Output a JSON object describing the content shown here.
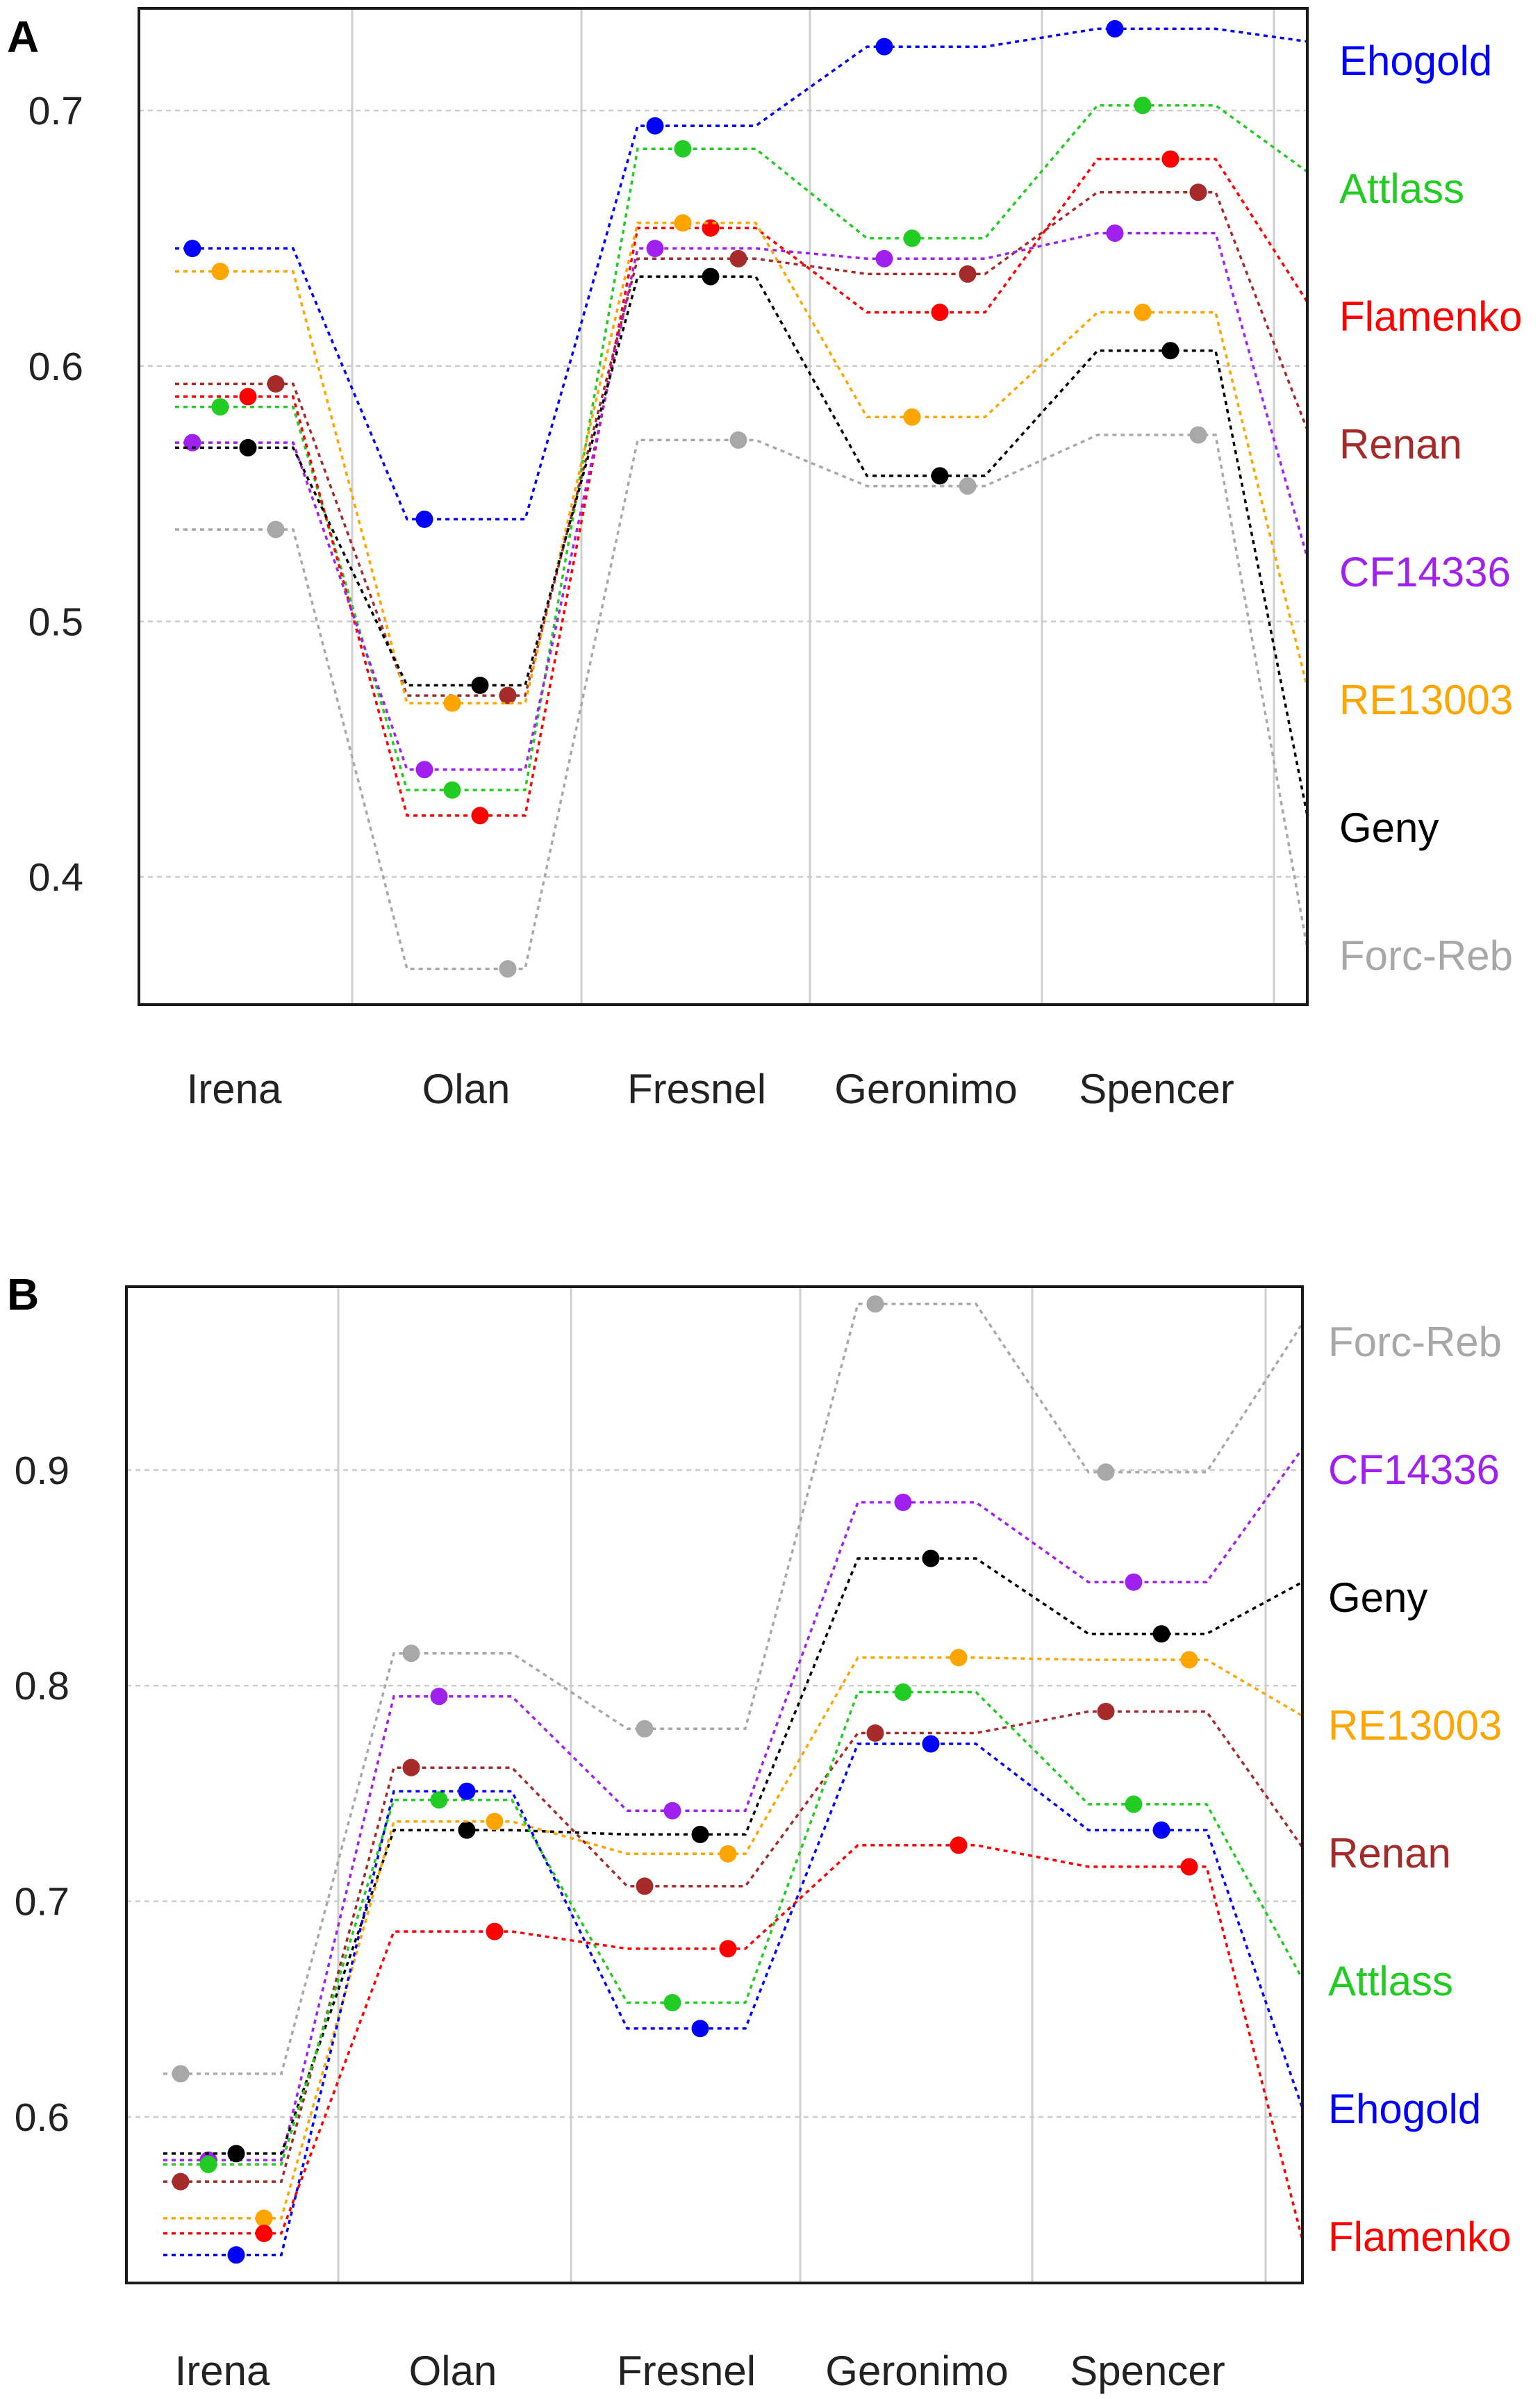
{
  "chart_data": [
    {
      "panel_label": "A",
      "type": "line",
      "categories": [
        "Irena",
        "Olan",
        "Fresnel",
        "Geronimo",
        "Spencer"
      ],
      "ylim": [
        0.35,
        0.74
      ],
      "yticks": [
        {
          "value": 0.4,
          "label": "0.4"
        },
        {
          "value": 0.5,
          "label": "0.5"
        },
        {
          "value": 0.6,
          "label": "0.6"
        },
        {
          "value": 0.7,
          "label": "0.7"
        }
      ],
      "grid": true,
      "line_style": "dotted",
      "end_value_note": "each series extends to the right border, ending at the right-border value",
      "series": [
        {
          "name": "Ehogold",
          "color": "#0000ff",
          "values": [
            0.646,
            0.54,
            0.694,
            0.725,
            0.732
          ],
          "end": 0.727
        },
        {
          "name": "Attlass",
          "color": "#22cc22",
          "values": [
            0.584,
            0.434,
            0.685,
            0.65,
            0.702
          ],
          "end": 0.676
        },
        {
          "name": "Flamenko",
          "color": "#ff0000",
          "values": [
            0.588,
            0.424,
            0.654,
            0.621,
            0.681
          ],
          "end": 0.625
        },
        {
          "name": "Renan",
          "color": "#a52a2a",
          "values": [
            0.593,
            0.471,
            0.642,
            0.636,
            0.668
          ],
          "end": 0.575
        },
        {
          "name": "CF14336",
          "color": "#a020f0",
          "values": [
            0.57,
            0.442,
            0.646,
            0.642,
            0.652
          ],
          "end": 0.525
        },
        {
          "name": "RE13003",
          "color": "#ffa500",
          "values": [
            0.637,
            0.468,
            0.656,
            0.58,
            0.621
          ],
          "end": 0.474
        },
        {
          "name": "Geny",
          "color": "#000000",
          "values": [
            0.568,
            0.475,
            0.635,
            0.557,
            0.606
          ],
          "end": 0.424
        },
        {
          "name": "Forc-Reb",
          "color": "#a8a8a8",
          "values": [
            0.536,
            0.364,
            0.571,
            0.553,
            0.573
          ],
          "end": 0.372
        }
      ]
    },
    {
      "panel_label": "B",
      "type": "line",
      "categories": [
        "Irena",
        "Olan",
        "Fresnel",
        "Geronimo",
        "Spencer"
      ],
      "ylim": [
        0.523,
        0.985
      ],
      "yticks": [
        {
          "value": 0.6,
          "label": "0.6"
        },
        {
          "value": 0.7,
          "label": "0.7"
        },
        {
          "value": 0.8,
          "label": "0.8"
        },
        {
          "value": 0.9,
          "label": "0.9"
        }
      ],
      "grid": true,
      "line_style": "dotted",
      "end_value_note": "each series extends to the right border, ending at the right-border value",
      "series": [
        {
          "name": "Forc-Reb",
          "color": "#a8a8a8",
          "values": [
            0.62,
            0.815,
            0.78,
            0.977,
            0.899
          ],
          "end": 0.968
        },
        {
          "name": "CF14336",
          "color": "#a020f0",
          "values": [
            0.58,
            0.795,
            0.742,
            0.885,
            0.848
          ],
          "end": 0.91
        },
        {
          "name": "Geny",
          "color": "#000000",
          "values": [
            0.583,
            0.733,
            0.731,
            0.859,
            0.824
          ],
          "end": 0.848
        },
        {
          "name": "RE13003",
          "color": "#ffa500",
          "values": [
            0.553,
            0.737,
            0.722,
            0.813,
            0.812
          ],
          "end": 0.786
        },
        {
          "name": "Renan",
          "color": "#a52a2a",
          "values": [
            0.57,
            0.762,
            0.707,
            0.778,
            0.788
          ],
          "end": 0.725
        },
        {
          "name": "Attlass",
          "color": "#22cc22",
          "values": [
            0.578,
            0.747,
            0.653,
            0.797,
            0.745
          ],
          "end": 0.664
        },
        {
          "name": "Ehogold",
          "color": "#0000ff",
          "values": [
            0.536,
            0.751,
            0.641,
            0.773,
            0.733
          ],
          "end": 0.604
        },
        {
          "name": "Flamenko",
          "color": "#ff0000",
          "values": [
            0.546,
            0.686,
            0.678,
            0.726,
            0.716
          ],
          "end": 0.543
        }
      ]
    }
  ]
}
